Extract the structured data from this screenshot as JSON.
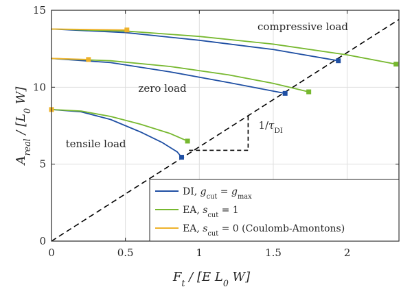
{
  "chart_data": {
    "type": "line",
    "xlabel": "F_t / [E L_0 W]",
    "ylabel": "A_real / [L_0 W]",
    "xlim": [
      0,
      2.35
    ],
    "ylim": [
      0,
      15
    ],
    "xticks": [
      0,
      0.5,
      1,
      1.5,
      2
    ],
    "xtick_labels": [
      "0",
      "0.5",
      "1",
      "1.5",
      "2"
    ],
    "yticks": [
      0,
      5,
      10,
      15
    ],
    "ytick_labels": [
      "0",
      "5",
      "10",
      "15"
    ],
    "grid": true,
    "legend_position": "bottom-right",
    "colors": {
      "DI": "#1f4fa3",
      "EA_s1": "#77b82f",
      "EA_s0": "#eeb22a",
      "dashed": "#000000"
    },
    "legend": [
      {
        "key": "DI",
        "label": "DI, g_cut = g_max"
      },
      {
        "key": "EA_s1",
        "label": "EA, s_cut = 1"
      },
      {
        "key": "EA_s0",
        "label": "EA, s_cut = 0 (Coulomb-Amontons)"
      }
    ],
    "annotations": [
      {
        "text": "compressive load",
        "x": 1.7,
        "y": 13.7
      },
      {
        "text": "zero load",
        "x": 0.75,
        "y": 9.7
      },
      {
        "text": "tensile load",
        "x": 0.3,
        "y": 6.1
      },
      {
        "text": "1/τ_DI",
        "x": 1.4,
        "y": 7.3
      }
    ],
    "dashed_line": {
      "slope": 6.12,
      "points": [
        [
          0,
          0
        ],
        [
          2.35,
          14.4
        ]
      ]
    },
    "slope_triangle": {
      "points": [
        [
          0.93,
          5.9
        ],
        [
          1.33,
          5.9
        ],
        [
          1.33,
          8.3
        ]
      ]
    },
    "series": [
      {
        "name": "DI, g_cut = g_max",
        "key": "DI",
        "group": "compressive",
        "x": [
          0,
          0.5,
          1.0,
          1.5,
          1.94
        ],
        "y": [
          13.78,
          13.55,
          13.05,
          12.45,
          11.72
        ]
      },
      {
        "name": "EA, s_cut = 1",
        "key": "EA_s1",
        "group": "compressive",
        "x": [
          0,
          0.5,
          1.0,
          1.5,
          2.0,
          2.33
        ],
        "y": [
          13.78,
          13.65,
          13.3,
          12.8,
          12.1,
          11.5
        ]
      },
      {
        "name": "EA, s_cut = 0 (Coulomb-Amontons)",
        "key": "EA_s0",
        "group": "compressive",
        "x": [
          0,
          0.51
        ],
        "y": [
          13.78,
          13.72
        ]
      },
      {
        "name": "DI, g_cut = g_max",
        "key": "DI",
        "group": "zero",
        "x": [
          0,
          0.4,
          0.8,
          1.2,
          1.58
        ],
        "y": [
          11.87,
          11.6,
          11.0,
          10.3,
          9.6
        ]
      },
      {
        "name": "EA, s_cut = 1",
        "key": "EA_s1",
        "group": "zero",
        "x": [
          0,
          0.4,
          0.8,
          1.2,
          1.5,
          1.74
        ],
        "y": [
          11.87,
          11.72,
          11.35,
          10.8,
          10.25,
          9.7
        ]
      },
      {
        "name": "EA, s_cut = 0 (Coulomb-Amontons)",
        "key": "EA_s0",
        "group": "zero",
        "x": [
          0,
          0.25
        ],
        "y": [
          11.87,
          11.8
        ]
      },
      {
        "name": "DI, g_cut = g_max",
        "key": "DI",
        "group": "tensile",
        "x": [
          0,
          0.2,
          0.4,
          0.6,
          0.75,
          0.85,
          0.88
        ],
        "y": [
          8.55,
          8.4,
          7.9,
          7.1,
          6.4,
          5.8,
          5.45
        ]
      },
      {
        "name": "EA, s_cut = 1",
        "key": "EA_s1",
        "group": "tensile",
        "x": [
          0,
          0.2,
          0.4,
          0.6,
          0.8,
          0.92
        ],
        "y": [
          8.55,
          8.45,
          8.1,
          7.6,
          7.0,
          6.5
        ]
      },
      {
        "name": "EA, s_cut = 0 (Coulomb-Amontons)",
        "key": "EA_s0",
        "group": "tensile",
        "x": [
          0
        ],
        "y": [
          8.55
        ]
      }
    ],
    "endpoint_markers": [
      {
        "key": "DI",
        "x": 1.94,
        "y": 11.72
      },
      {
        "key": "EA_s1",
        "x": 2.33,
        "y": 11.5
      },
      {
        "key": "EA_s0",
        "x": 0.51,
        "y": 13.72
      },
      {
        "key": "DI",
        "x": 1.58,
        "y": 9.6
      },
      {
        "key": "EA_s1",
        "x": 1.74,
        "y": 9.7
      },
      {
        "key": "EA_s0",
        "x": 0.25,
        "y": 11.8
      },
      {
        "key": "DI",
        "x": 0.88,
        "y": 5.45
      },
      {
        "key": "EA_s1",
        "x": 0.92,
        "y": 6.5
      },
      {
        "key": "EA_s0",
        "x": 0,
        "y": 8.55
      }
    ]
  }
}
